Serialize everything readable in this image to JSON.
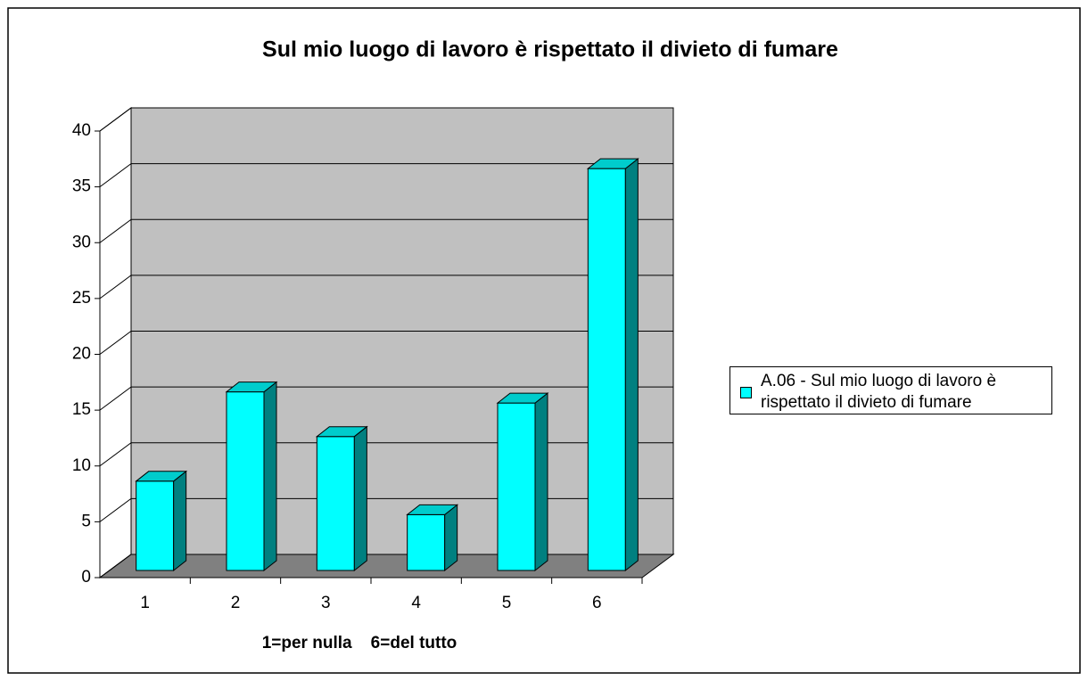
{
  "chart_data": {
    "type": "bar3d",
    "title": "Sul mio luogo di lavoro è rispettato il divieto di fumare",
    "x_label": "1=per nulla    6=del tutto",
    "categories": [
      "1",
      "2",
      "3",
      "4",
      "5",
      "6"
    ],
    "series": [
      {
        "name": "A.06 - Sul mio luogo di lavoro è rispettato il divieto di fumare",
        "color": "#00ffff",
        "values": [
          8,
          16,
          12,
          5,
          15,
          36
        ]
      }
    ],
    "ylim": [
      0,
      40
    ],
    "yticks": [
      0,
      5,
      10,
      15,
      20,
      25,
      30,
      35,
      40
    ],
    "grid": true,
    "legend": "right"
  }
}
